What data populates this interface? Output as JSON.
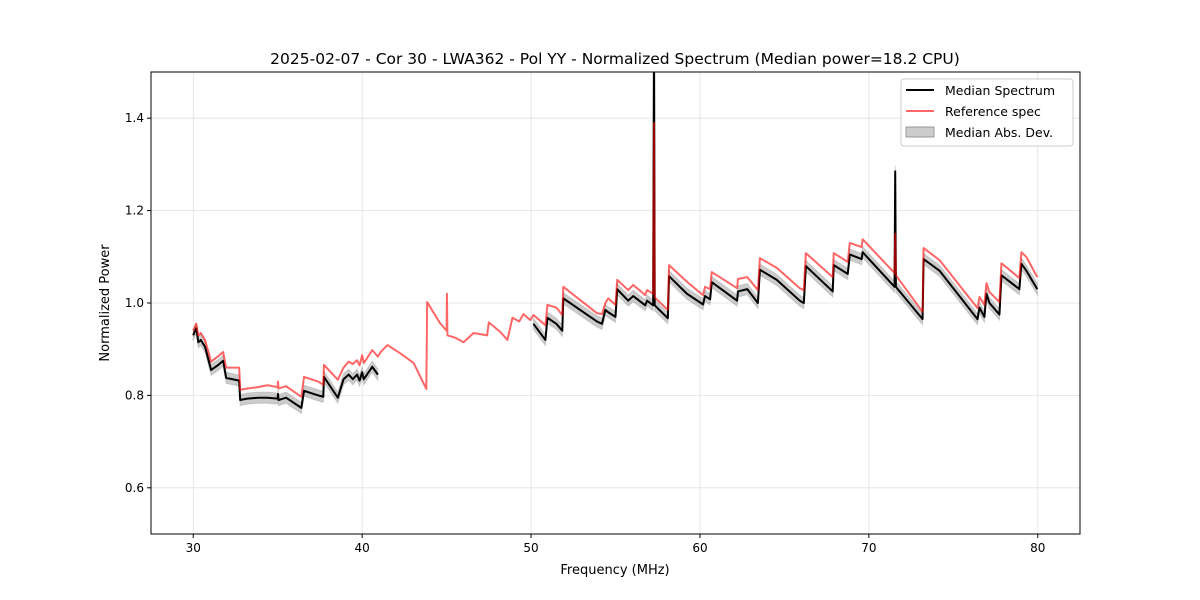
{
  "chart_data": {
    "type": "line",
    "title": "2025-02-07 - Cor 30 - LWA362 - Pol YY - Normalized Spectrum (Median power=18.2 CPU)",
    "xlabel": "Frequency (MHz)",
    "ylabel": "Normalized Power",
    "xlim": [
      27.5,
      82.5
    ],
    "ylim": [
      0.5,
      1.5
    ],
    "xticks": [
      30,
      40,
      50,
      60,
      70,
      80
    ],
    "yticks": [
      0.6,
      0.8,
      1.0,
      1.2,
      1.4
    ],
    "ytick_labels": [
      "0.6",
      "0.8",
      "1.0",
      "1.2",
      "1.4"
    ],
    "grid": true,
    "legend_position": "top-right",
    "legend": [
      "Median Spectrum",
      "Reference spec",
      "Median Abs. Dev."
    ],
    "colors": {
      "median": "#000000",
      "reference": "#ff0000",
      "mad": "#999999"
    },
    "mad_halfwidth": 0.012,
    "series": [
      {
        "name": "Median Spectrum",
        "segments": [
          [
            [
              30.0,
              0.93
            ],
            [
              30.1,
              0.94
            ],
            [
              30.18,
              0.945
            ],
            [
              30.3,
              0.915
            ],
            [
              30.45,
              0.92
            ],
            [
              30.7,
              0.905
            ],
            [
              31.06,
              0.855
            ],
            [
              31.45,
              0.865
            ],
            [
              31.77,
              0.875
            ],
            [
              31.95,
              0.838
            ],
            [
              32.72,
              0.832
            ],
            [
              32.78,
              0.79
            ],
            [
              33.2,
              0.793
            ],
            [
              33.84,
              0.795
            ],
            [
              34.4,
              0.795
            ],
            [
              35.0,
              0.793
            ],
            [
              35.02,
              0.803
            ],
            [
              35.05,
              0.79
            ],
            [
              35.5,
              0.795
            ],
            [
              36.4,
              0.773
            ],
            [
              36.56,
              0.81
            ],
            [
              37.4,
              0.8
            ],
            [
              37.7,
              0.797
            ],
            [
              37.74,
              0.84
            ],
            [
              38.56,
              0.795
            ],
            [
              38.9,
              0.835
            ],
            [
              39.2,
              0.845
            ],
            [
              39.45,
              0.835
            ],
            [
              39.7,
              0.845
            ],
            [
              39.85,
              0.832
            ],
            [
              40.0,
              0.85
            ],
            [
              40.1,
              0.835
            ],
            [
              40.6,
              0.862
            ],
            [
              40.93,
              0.845
            ]
          ],
          [
            [
              50.14,
              0.955
            ],
            [
              50.85,
              0.92
            ],
            [
              50.97,
              0.968
            ],
            [
              51.5,
              0.955
            ],
            [
              51.85,
              0.94
            ],
            [
              51.91,
              1.01
            ],
            [
              53.9,
              0.96
            ],
            [
              54.2,
              0.955
            ],
            [
              54.4,
              0.985
            ],
            [
              54.57,
              0.98
            ],
            [
              55.0,
              0.97
            ],
            [
              55.1,
              1.03
            ],
            [
              55.75,
              1.005
            ],
            [
              56.05,
              1.015
            ],
            [
              56.76,
              0.995
            ],
            [
              56.87,
              1.005
            ],
            [
              57.23,
              0.995
            ],
            [
              57.28,
              1.6
            ],
            [
              57.32,
              0.995
            ],
            [
              58.1,
              0.967
            ],
            [
              58.17,
              1.058
            ],
            [
              59.23,
              1.02
            ],
            [
              60.18,
              0.997
            ],
            [
              60.3,
              1.015
            ],
            [
              60.6,
              1.008
            ],
            [
              60.7,
              1.045
            ],
            [
              62.2,
              1.005
            ],
            [
              62.25,
              1.025
            ],
            [
              62.8,
              1.03
            ],
            [
              63.43,
              1.0
            ],
            [
              63.55,
              1.072
            ],
            [
              64.55,
              1.05
            ],
            [
              65.91,
              1.005
            ],
            [
              66.15,
              1.0
            ],
            [
              66.27,
              1.08
            ],
            [
              67.86,
              1.025
            ],
            [
              67.92,
              1.082
            ],
            [
              68.75,
              1.063
            ],
            [
              68.87,
              1.105
            ],
            [
              69.57,
              1.095
            ],
            [
              69.63,
              1.11
            ],
            [
              71.52,
              1.035
            ],
            [
              71.56,
              1.285
            ],
            [
              71.6,
              1.035
            ],
            [
              73.18,
              0.965
            ],
            [
              73.24,
              1.095
            ],
            [
              74.18,
              1.07
            ],
            [
              76.43,
              0.965
            ],
            [
              76.55,
              0.99
            ],
            [
              76.84,
              0.97
            ],
            [
              76.96,
              1.02
            ],
            [
              77.14,
              1.0
            ],
            [
              77.73,
              0.975
            ],
            [
              77.85,
              1.06
            ],
            [
              78.91,
              1.03
            ],
            [
              79.03,
              1.085
            ],
            [
              79.32,
              1.07
            ],
            [
              79.97,
              1.03
            ]
          ]
        ]
      },
      {
        "name": "Reference spec",
        "segments": [
          [
            [
              30.0,
              0.94
            ],
            [
              30.1,
              0.948
            ],
            [
              30.18,
              0.955
            ],
            [
              30.3,
              0.93
            ],
            [
              30.45,
              0.935
            ],
            [
              30.7,
              0.92
            ],
            [
              31.06,
              0.873
            ],
            [
              31.45,
              0.884
            ],
            [
              31.77,
              0.894
            ],
            [
              31.95,
              0.86
            ],
            [
              32.72,
              0.86
            ],
            [
              32.78,
              0.812
            ],
            [
              33.2,
              0.815
            ],
            [
              33.84,
              0.818
            ],
            [
              34.4,
              0.822
            ],
            [
              35.0,
              0.818
            ],
            [
              35.02,
              0.83
            ],
            [
              35.05,
              0.815
            ],
            [
              35.5,
              0.82
            ],
            [
              36.4,
              0.797
            ],
            [
              36.56,
              0.84
            ],
            [
              37.4,
              0.83
            ],
            [
              37.7,
              0.823
            ],
            [
              37.74,
              0.866
            ],
            [
              38.56,
              0.834
            ],
            [
              38.9,
              0.86
            ],
            [
              39.2,
              0.873
            ],
            [
              39.45,
              0.868
            ],
            [
              39.7,
              0.876
            ],
            [
              39.85,
              0.865
            ],
            [
              40.0,
              0.887
            ],
            [
              40.1,
              0.87
            ],
            [
              40.6,
              0.898
            ],
            [
              40.93,
              0.884
            ],
            [
              41.1,
              0.894
            ],
            [
              41.5,
              0.909
            ],
            [
              42.3,
              0.89
            ],
            [
              43.05,
              0.87
            ],
            [
              43.8,
              0.814
            ],
            [
              43.85,
              1.002
            ],
            [
              44.6,
              0.957
            ],
            [
              45.0,
              0.94
            ],
            [
              45.02,
              1.02
            ],
            [
              45.05,
              0.93
            ],
            [
              45.5,
              0.925
            ],
            [
              46.0,
              0.915
            ],
            [
              46.6,
              0.935
            ],
            [
              47.4,
              0.93
            ],
            [
              47.5,
              0.958
            ],
            [
              48.19,
              0.937
            ],
            [
              48.6,
              0.92
            ],
            [
              48.9,
              0.968
            ],
            [
              49.3,
              0.96
            ],
            [
              49.55,
              0.976
            ],
            [
              49.96,
              0.963
            ],
            [
              50.14,
              0.974
            ],
            [
              50.85,
              0.952
            ],
            [
              50.97,
              0.996
            ],
            [
              51.5,
              0.99
            ],
            [
              51.85,
              0.974
            ],
            [
              51.91,
              1.035
            ],
            [
              53.9,
              0.978
            ],
            [
              54.2,
              0.976
            ],
            [
              54.4,
              1.0
            ],
            [
              54.57,
              1.01
            ],
            [
              55.0,
              0.996
            ],
            [
              55.1,
              1.05
            ],
            [
              55.75,
              1.028
            ],
            [
              56.05,
              1.039
            ],
            [
              56.76,
              1.017
            ],
            [
              56.87,
              1.028
            ],
            [
              57.23,
              1.02
            ],
            [
              57.28,
              1.39
            ],
            [
              57.32,
              1.012
            ],
            [
              58.1,
              0.985
            ],
            [
              58.17,
              1.082
            ],
            [
              59.23,
              1.046
            ],
            [
              60.18,
              1.017
            ],
            [
              60.3,
              1.035
            ],
            [
              60.6,
              1.03
            ],
            [
              60.7,
              1.067
            ],
            [
              62.2,
              1.032
            ],
            [
              62.25,
              1.052
            ],
            [
              62.8,
              1.056
            ],
            [
              63.43,
              1.028
            ],
            [
              63.55,
              1.097
            ],
            [
              64.55,
              1.076
            ],
            [
              65.91,
              1.032
            ],
            [
              66.15,
              1.028
            ],
            [
              66.27,
              1.108
            ],
            [
              67.86,
              1.056
            ],
            [
              67.92,
              1.108
            ],
            [
              68.75,
              1.089
            ],
            [
              68.87,
              1.13
            ],
            [
              69.57,
              1.121
            ],
            [
              69.63,
              1.138
            ],
            [
              71.52,
              1.065
            ],
            [
              71.56,
              1.15
            ],
            [
              71.6,
              1.06
            ],
            [
              73.18,
              0.981
            ],
            [
              73.24,
              1.119
            ],
            [
              74.18,
              1.093
            ],
            [
              76.43,
              0.989
            ],
            [
              76.55,
              1.013
            ],
            [
              76.84,
              0.996
            ],
            [
              76.96,
              1.043
            ],
            [
              77.14,
              1.024
            ],
            [
              77.73,
              1.002
            ],
            [
              77.85,
              1.086
            ],
            [
              78.91,
              1.054
            ],
            [
              79.03,
              1.11
            ],
            [
              79.32,
              1.1
            ],
            [
              79.97,
              1.056
            ]
          ]
        ]
      }
    ]
  }
}
